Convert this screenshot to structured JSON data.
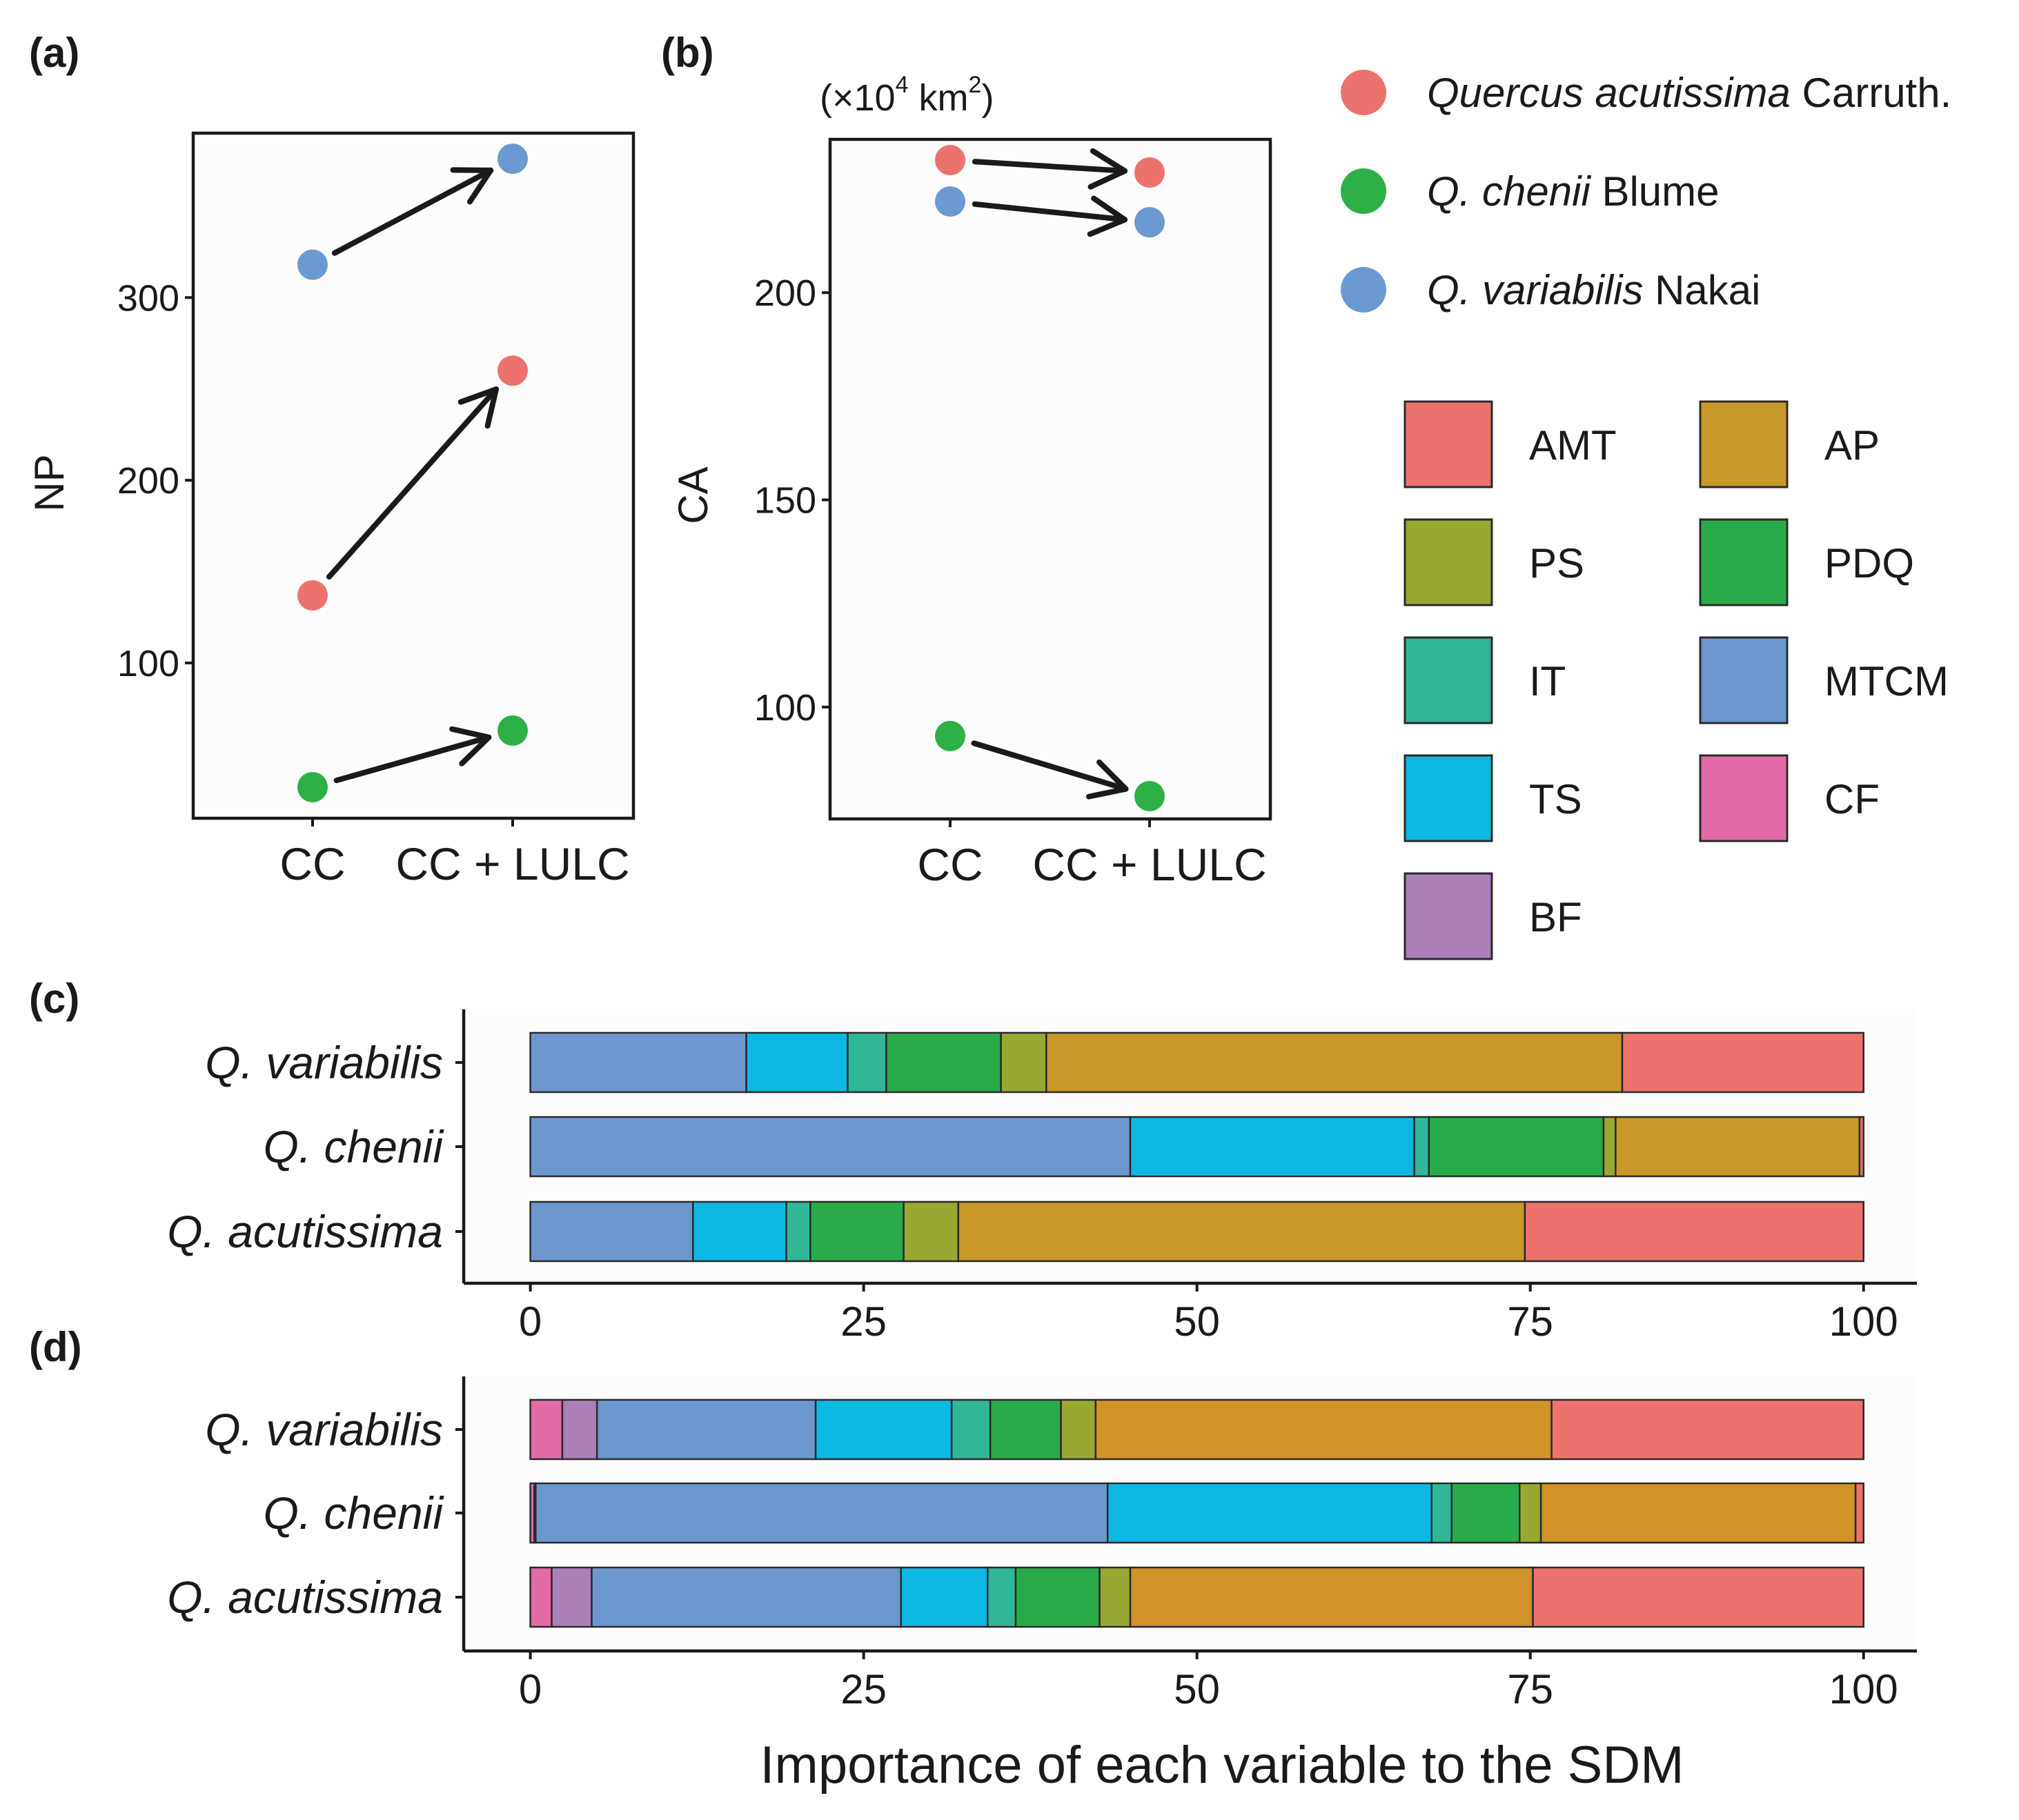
{
  "chart_data": [
    {
      "panel": "(a)",
      "type": "scatter",
      "xlabel": "",
      "ylabel": "NP",
      "categories": [
        "CC",
        "CC + LULC"
      ],
      "ylim": [
        15,
        390
      ],
      "yticks": [
        100,
        200,
        300
      ],
      "series": [
        {
          "name": "Quercus acutissima Carruth.",
          "values": [
            137,
            260
          ]
        },
        {
          "name": "Q. chenii Blume",
          "values": [
            32,
            63
          ]
        },
        {
          "name": "Q. variabilis Nakai",
          "values": [
            318,
            376
          ]
        }
      ]
    },
    {
      "panel": "(b)",
      "type": "scatter",
      "xlabel": "",
      "ylabel": "CA",
      "unit_prefix": "(×10",
      "unit_exp1": "4",
      "unit_km": " km",
      "unit_exp2": "2",
      "unit_suffix": ")",
      "categories": [
        "CC",
        "CC + LULC"
      ],
      "ylim": [
        73,
        237
      ],
      "yticks": [
        100,
        150,
        200
      ],
      "series": [
        {
          "name": "Quercus acutissima Carruth.",
          "values": [
            232,
            229
          ]
        },
        {
          "name": "Q. chenii Blume",
          "values": [
            93,
            78.5
          ]
        },
        {
          "name": "Q. variabilis Nakai",
          "values": [
            222,
            217
          ]
        }
      ]
    },
    {
      "panel": "(c)",
      "type": "bar",
      "stacked": true,
      "orientation": "horizontal",
      "categories": [
        "Q. variabilis",
        "Q. chenii",
        "Q. acutissima"
      ],
      "xlim": [
        -5,
        104
      ],
      "xticks": [
        0,
        25,
        50,
        75,
        100
      ],
      "stack_order": [
        "MTCM",
        "TS",
        "IT",
        "PDQ",
        "PS",
        "AP",
        "AMT"
      ],
      "series": [
        {
          "name": "MTCM",
          "values": [
            16.2,
            45,
            12.2
          ]
        },
        {
          "name": "TS",
          "values": [
            7.6,
            21.3,
            7
          ]
        },
        {
          "name": "IT",
          "values": [
            2.9,
            1.1,
            1.8
          ]
        },
        {
          "name": "PDQ",
          "values": [
            8.6,
            13.1,
            7
          ]
        },
        {
          "name": "PS",
          "values": [
            3.4,
            0.9,
            4.1
          ]
        },
        {
          "name": "AP",
          "values": [
            43.2,
            18.3,
            42.5
          ]
        },
        {
          "name": "AMT",
          "values": [
            18.1,
            0.3,
            25.4
          ]
        }
      ]
    },
    {
      "panel": "(d)",
      "type": "bar",
      "stacked": true,
      "orientation": "horizontal",
      "categories": [
        "Q. variabilis",
        "Q. chenii",
        "Q. acutissima"
      ],
      "xlim": [
        -5,
        104
      ],
      "xticks": [
        0,
        25,
        50,
        75,
        100
      ],
      "xlabel": "Importance of each variable to the SDM",
      "stack_order": [
        "CF",
        "BF",
        "MTCM",
        "TS",
        "IT",
        "PDQ",
        "PS",
        "AP",
        "AMT"
      ],
      "series": [
        {
          "name": "CF",
          "values": [
            2.4,
            0.3,
            1.6
          ]
        },
        {
          "name": "BF",
          "values": [
            2.6,
            0.1,
            3
          ]
        },
        {
          "name": "MTCM",
          "values": [
            16.4,
            42.9,
            23.2
          ]
        },
        {
          "name": "TS",
          "values": [
            10.2,
            24.3,
            6.5
          ]
        },
        {
          "name": "IT",
          "values": [
            2.9,
            1.5,
            2.1
          ]
        },
        {
          "name": "PDQ",
          "values": [
            5.3,
            5.1,
            6.3
          ]
        },
        {
          "name": "PS",
          "values": [
            2.6,
            1.6,
            2.3
          ]
        },
        {
          "name": "AP",
          "values": [
            34.2,
            23.6,
            30.2
          ]
        },
        {
          "name": "AMT",
          "values": [
            23.4,
            0.6,
            24.8
          ]
        }
      ]
    }
  ],
  "species_legend": [
    {
      "italic": "Quercus acutissima",
      "rest": " Carruth.",
      "color": "#ec736d"
    },
    {
      "italic": "Q. chenii",
      "rest": " Blume",
      "color": "#2db046"
    },
    {
      "italic": "Q. variabilis",
      "rest": " Nakai",
      "color": "#6b99d1"
    }
  ],
  "variable_legend": [
    {
      "name": "AMT",
      "color": "#ec736d"
    },
    {
      "name": "AP",
      "color": "#c8972a"
    },
    {
      "name": "PS",
      "color": "#98a832"
    },
    {
      "name": "PDQ",
      "color": "#2aab4a"
    },
    {
      "name": "IT",
      "color": "#31b797"
    },
    {
      "name": "MTCM",
      "color": "#6c97ce"
    },
    {
      "name": "TS",
      "color": "#0db9e3"
    },
    {
      "name": "CF",
      "color": "#e26ba7"
    },
    {
      "name": "BF",
      "color": "#ab7fb8"
    }
  ],
  "colors": {
    "AP_panel_d": "#d1922a",
    "axis": "#1a1a1a",
    "panel_bg": "#fcfcfc"
  }
}
